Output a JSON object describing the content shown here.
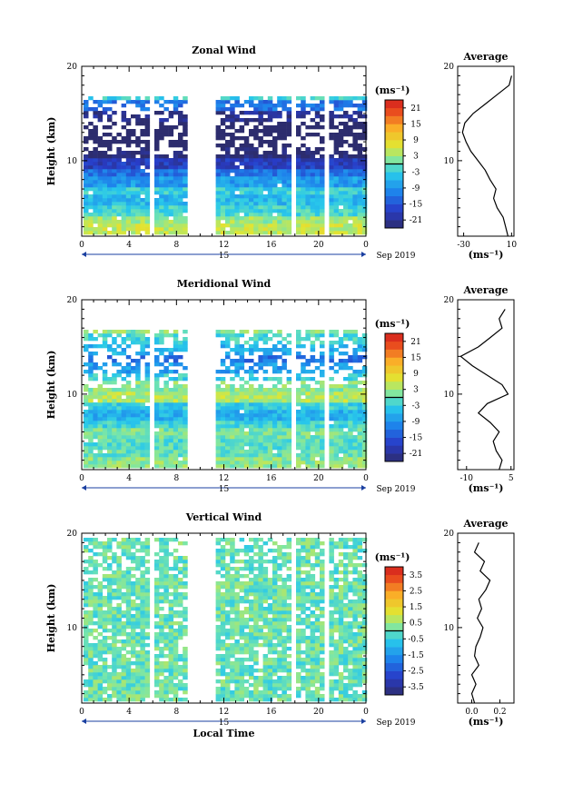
{
  "panels": [
    {
      "title": "Zonal Wind",
      "colorbar_ticks": [
        "21",
        "15",
        "9",
        "3",
        "-3",
        "-9",
        "-15",
        "-21"
      ],
      "colorbar_range": [
        -24,
        24
      ],
      "profile_title": "Average",
      "profile_xticks": [
        "-30",
        "10"
      ],
      "profile_xrange": [
        -35,
        12
      ],
      "show_local_time": false
    },
    {
      "title": "Meridional Wind",
      "colorbar_ticks": [
        "21",
        "15",
        "9",
        "3",
        "-3",
        "-9",
        "-15",
        "-21"
      ],
      "colorbar_range": [
        -24,
        24
      ],
      "profile_title": "Average",
      "profile_xticks": [
        "-10",
        "5"
      ],
      "profile_xrange": [
        -13,
        6
      ],
      "show_local_time": false
    },
    {
      "title": "Vertical Wind",
      "colorbar_ticks": [
        "3.5",
        "2.5",
        "1.5",
        "0.5",
        "-0.5",
        "-1.5",
        "-2.5",
        "-3.5"
      ],
      "colorbar_range": [
        -4,
        4
      ],
      "profile_title": "Average",
      "profile_xticks": [
        "0.0",
        "0.2"
      ],
      "profile_xrange": [
        -0.1,
        0.3
      ],
      "show_local_time": true
    }
  ],
  "labels": {
    "ylabel": "Height (km)",
    "units": "(ms⁻¹)",
    "date": "Sep 2019",
    "day": "15",
    "xlabel": "Local Time",
    "time_ticks": [
      "0",
      "4",
      "8",
      "12",
      "16",
      "20",
      "0"
    ],
    "height_ticks": [
      "20",
      "10"
    ]
  },
  "chart_data": [
    {
      "type": "heatmap",
      "title": "Zonal Wind",
      "xlabel": "",
      "ylabel": "Height (km)",
      "x_ticks": [
        0,
        4,
        8,
        12,
        16,
        20,
        24
      ],
      "ylim": [
        2,
        20
      ],
      "colorbar_label": "(ms⁻¹)",
      "colorbar_range": [
        -24,
        24
      ],
      "profile": {
        "title": "Average",
        "x_label": "(ms⁻¹)",
        "heights_km": [
          2,
          3,
          4,
          5,
          6,
          7,
          8,
          9,
          10,
          11,
          12,
          13,
          14,
          15,
          16,
          17,
          18,
          19
        ],
        "values": [
          7,
          5,
          3,
          -2,
          -5,
          -3,
          -8,
          -12,
          -18,
          -24,
          -28,
          -31,
          -29,
          -22,
          -12,
          -2,
          8,
          10
        ]
      }
    },
    {
      "type": "heatmap",
      "title": "Meridional Wind",
      "xlabel": "",
      "ylabel": "Height (km)",
      "x_ticks": [
        0,
        4,
        8,
        12,
        16,
        20,
        24
      ],
      "ylim": [
        2,
        20
      ],
      "colorbar_label": "(ms⁻¹)",
      "colorbar_range": [
        -24,
        24
      ],
      "profile": {
        "title": "Average",
        "x_label": "(ms⁻¹)",
        "heights_km": [
          2,
          3,
          4,
          5,
          6,
          7,
          8,
          9,
          10,
          11,
          12,
          13,
          14,
          15,
          16,
          17,
          18,
          19
        ],
        "values": [
          1,
          2,
          0,
          -1,
          1,
          -2,
          -6,
          -3,
          4,
          2,
          -3,
          -8,
          -12,
          -6,
          -2,
          2,
          1,
          3
        ]
      }
    },
    {
      "type": "heatmap",
      "title": "Vertical Wind",
      "xlabel": "Local Time",
      "ylabel": "Height (km)",
      "x_ticks": [
        0,
        4,
        8,
        12,
        16,
        20,
        24
      ],
      "ylim": [
        2,
        20
      ],
      "colorbar_label": "(ms⁻¹)",
      "colorbar_range": [
        -4,
        4
      ],
      "profile": {
        "title": "Average",
        "x_label": "(ms⁻¹)",
        "heights_km": [
          2,
          3,
          4,
          5,
          6,
          7,
          8,
          9,
          10,
          11,
          12,
          13,
          14,
          15,
          16,
          17,
          18,
          19
        ],
        "values": [
          0.02,
          0.0,
          0.03,
          0.0,
          0.05,
          0.02,
          0.03,
          0.06,
          0.08,
          0.04,
          0.07,
          0.05,
          0.1,
          0.13,
          0.06,
          0.09,
          0.02,
          0.05
        ]
      }
    }
  ]
}
